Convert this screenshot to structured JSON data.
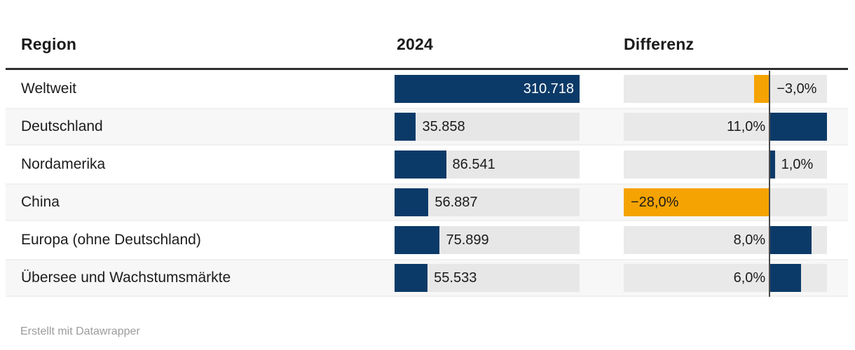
{
  "table": {
    "columns": {
      "region": "Region",
      "value": "2024",
      "diff": "Differenz"
    },
    "rows": [
      {
        "region": "Weltweit",
        "value": 310718,
        "value_label": "310.718",
        "diff": -3.0,
        "diff_label": "−3,0%"
      },
      {
        "region": "Deutschland",
        "value": 35858,
        "value_label": "35.858",
        "diff": 11.0,
        "diff_label": "11,0%"
      },
      {
        "region": "Nordamerika",
        "value": 86541,
        "value_label": "86.541",
        "diff": 1.0,
        "diff_label": "1,0%"
      },
      {
        "region": "China",
        "value": 56887,
        "value_label": "56.887",
        "diff": -28.0,
        "diff_label": "−28,0%"
      },
      {
        "region": "Europa (ohne Deutschland)",
        "value": 75899,
        "value_label": "75.899",
        "diff": 8.0,
        "diff_label": "8,0%"
      },
      {
        "region": "Übersee und Wachstumsmärkte",
        "value": 55533,
        "value_label": "55.533",
        "diff": 6.0,
        "diff_label": "6,0%"
      }
    ]
  },
  "footer": {
    "attribution": "Erstellt mit Datawrapper"
  },
  "colors": {
    "bar": "#0c3a68",
    "positive": "#0c3a68",
    "negative": "#f5a302",
    "axis_line": "#4a4a4a",
    "header_rule": "#2e2e2e",
    "track_value": "#e7e7e7",
    "track_diff": "#e9e9e9",
    "row_alt_bg": "#f7f7f7",
    "text": "#1b1b1b",
    "footer_text": "#9b9b9b"
  },
  "chart_data": {
    "type": "bar",
    "orientation": "horizontal",
    "title": "",
    "xlabel": "",
    "ylabel": "",
    "categories": [
      "Weltweit",
      "Deutschland",
      "Nordamerika",
      "China",
      "Europa (ohne Deutschland)",
      "Übersee und Wachstumsmärkte"
    ],
    "series": [
      {
        "name": "2024",
        "values": [
          310718,
          35858,
          86541,
          56887,
          75899,
          55533
        ],
        "value_range": [
          0,
          310718
        ]
      },
      {
        "name": "Differenz (%)",
        "values": [
          -3.0,
          11.0,
          1.0,
          -28.0,
          8.0,
          6.0
        ],
        "value_range": [
          -28,
          11
        ]
      }
    ],
    "grid": false,
    "legend_position": "none"
  }
}
